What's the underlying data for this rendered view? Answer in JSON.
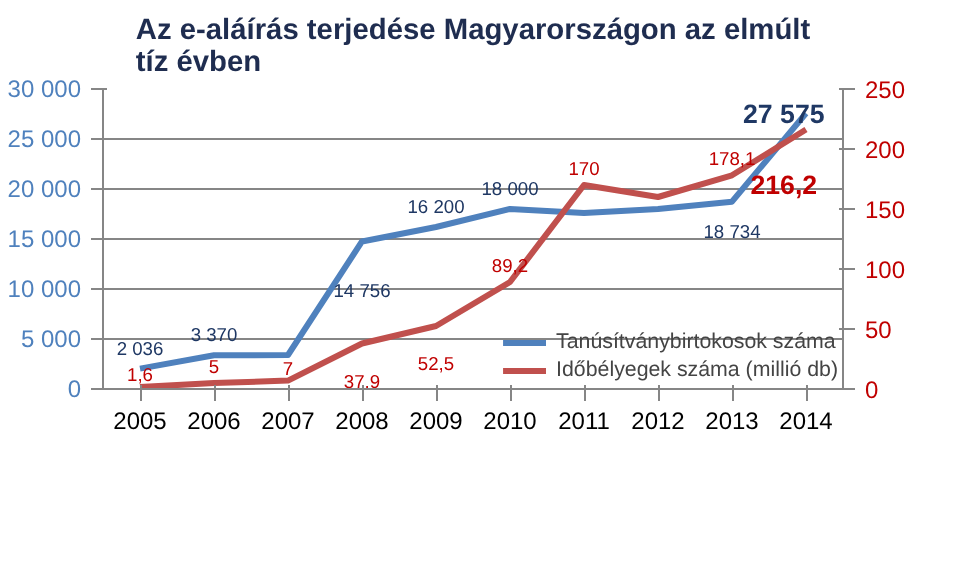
{
  "chart_data": {
    "type": "line",
    "title": "Az e-aláírás terjedése Magyarországon az elmúlt tíz évben",
    "categories": [
      "2005",
      "2006",
      "2007",
      "2008",
      "2009",
      "2010",
      "2011",
      "2012",
      "2013",
      "2014"
    ],
    "series": [
      {
        "name": "Tanúsítványbirtokosok száma",
        "color": "#4f81bd",
        "values": [
          2036,
          3370,
          3400,
          14756,
          16200,
          18000,
          17600,
          18000,
          18734,
          27575
        ],
        "value_labels": [
          "2 036",
          "3 370",
          null,
          "14 756",
          "16 200",
          "18 000",
          null,
          null,
          "18 734",
          "27 575"
        ]
      },
      {
        "name": "Időbélyegek száma (millió db)",
        "color": "#c0504d",
        "axis": "y2",
        "values": [
          1.6,
          5,
          7,
          37.9,
          52.5,
          89.2,
          170,
          160,
          178.1,
          216.2
        ],
        "value_labels": [
          "1,6",
          "5",
          "7",
          "37,9",
          "52,5",
          "89,2",
          "170",
          null,
          "178,1",
          "216,2"
        ]
      }
    ],
    "ylim": [
      0,
      30000
    ],
    "yticks": [
      {
        "value": 0,
        "label": "0"
      },
      {
        "value": 5000,
        "label": "5 000"
      },
      {
        "value": 10000,
        "label": "10 000"
      },
      {
        "value": 15000,
        "label": "15 000"
      },
      {
        "value": 20000,
        "label": "20 000"
      },
      {
        "value": 25000,
        "label": "25 000"
      },
      {
        "value": 30000,
        "label": "30 000"
      }
    ],
    "y2lim": [
      0,
      250
    ],
    "y2ticks": [
      0,
      50,
      100,
      150,
      200,
      250
    ],
    "grid": "y",
    "legend": "bottom right",
    "marker": "none",
    "line_style": "solid"
  }
}
